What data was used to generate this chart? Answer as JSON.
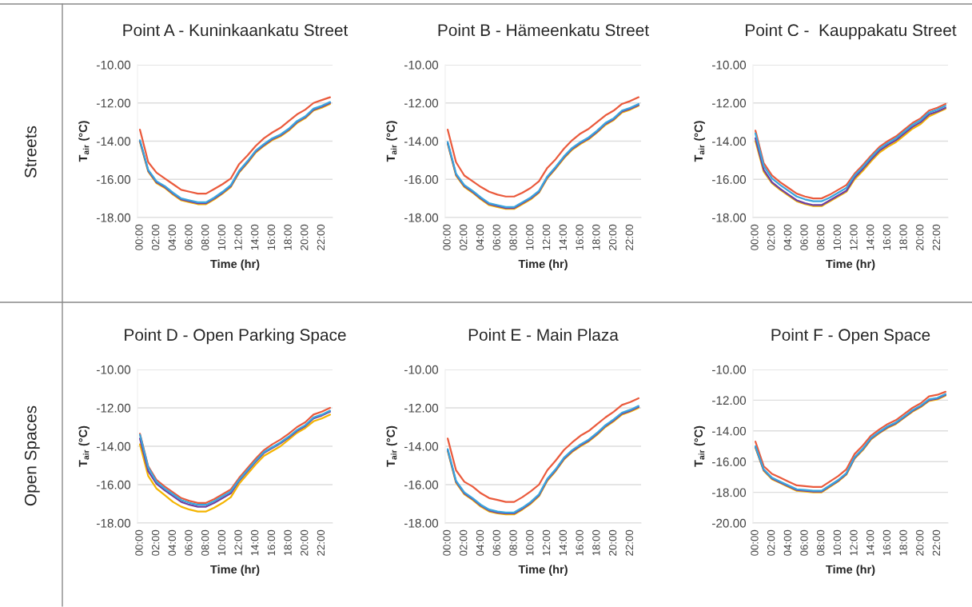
{
  "chart_data": [
    {
      "type": "line",
      "title": "Point A - Kuninkaankatu Street",
      "xlabel": "Time (hr)",
      "ylabel": "T$_{air}$ (°C)",
      "annotations": [
        "Streets"
      ],
      "categories": [
        "00:00",
        null,
        "02:00",
        null,
        "04:00",
        null,
        "06:00",
        null,
        "08:00",
        null,
        "10:00",
        null,
        "12:00",
        null,
        "14:00",
        null,
        "16:00",
        null,
        "18:00",
        null,
        "20:00",
        null,
        "22:00",
        null
      ],
      "ylim": [
        -18,
        -10
      ],
      "yticks": [
        {
          "value": -18,
          "label": "-18.00"
        },
        {
          "value": -16,
          "label": "-16.00"
        },
        {
          "value": -14,
          "label": "-14.00"
        },
        {
          "value": -12,
          "label": "-12.00"
        },
        {
          "value": -10,
          "label": "-10.00"
        }
      ],
      "grid": "y",
      "legend": false,
      "series": [
        {
          "color": "#ea5a3c",
          "values": [
            -13.4,
            -15.1,
            -15.65,
            -15.95,
            -16.25,
            -16.55,
            -16.65,
            -16.75,
            -16.75,
            -16.5,
            -16.25,
            -15.95,
            -15.2,
            -14.75,
            -14.25,
            -13.85,
            -13.55,
            -13.3,
            -12.95,
            -12.6,
            -12.35,
            -12.0,
            -11.85,
            -11.7
          ]
        },
        {
          "color": "#f4b400",
          "values": [
            -14.05,
            -15.6,
            -16.2,
            -16.45,
            -16.8,
            -17.1,
            -17.2,
            -17.3,
            -17.3,
            -17.05,
            -16.75,
            -16.4,
            -15.65,
            -15.15,
            -14.6,
            -14.25,
            -13.95,
            -13.75,
            -13.45,
            -13.05,
            -12.8,
            -12.4,
            -12.25,
            -12.05
          ]
        },
        {
          "color": "#6f3fa0",
          "values": [
            -14.0,
            -15.55,
            -16.15,
            -16.4,
            -16.75,
            -17.05,
            -17.15,
            -17.25,
            -17.25,
            -17.0,
            -16.7,
            -16.35,
            -15.6,
            -15.1,
            -14.55,
            -14.2,
            -13.9,
            -13.7,
            -13.4,
            -13.0,
            -12.75,
            -12.35,
            -12.2,
            -12.0
          ]
        },
        {
          "color": "#3aa6dd",
          "values": [
            -13.95,
            -15.5,
            -16.1,
            -16.35,
            -16.7,
            -17.0,
            -17.1,
            -17.2,
            -17.2,
            -16.95,
            -16.65,
            -16.3,
            -15.55,
            -15.05,
            -14.5,
            -14.15,
            -13.85,
            -13.65,
            -13.35,
            -12.95,
            -12.7,
            -12.3,
            -12.15,
            -11.95
          ]
        }
      ]
    },
    {
      "type": "line",
      "title": "Point B - Hämeenkatu Street",
      "xlabel": "Time (hr)",
      "ylabel": "T$_{air}$ (°C)",
      "categories": [
        "00:00",
        null,
        "02:00",
        null,
        "04:00",
        null,
        "06:00",
        null,
        "08:00",
        null,
        "10:00",
        null,
        "12:00",
        null,
        "14:00",
        null,
        "16:00",
        null,
        "18:00",
        null,
        "20:00",
        null,
        "22:00",
        null
      ],
      "ylim": [
        -18,
        -10
      ],
      "yticks": [
        {
          "value": -18,
          "label": "-18.00"
        },
        {
          "value": -16,
          "label": "-16.00"
        },
        {
          "value": -14,
          "label": "-14.00"
        },
        {
          "value": -12,
          "label": "-12.00"
        },
        {
          "value": -10,
          "label": "-10.00"
        }
      ],
      "grid": "y",
      "legend": false,
      "series": [
        {
          "color": "#ea5a3c",
          "values": [
            -13.4,
            -15.1,
            -15.8,
            -16.1,
            -16.4,
            -16.65,
            -16.8,
            -16.9,
            -16.9,
            -16.7,
            -16.45,
            -16.1,
            -15.4,
            -14.95,
            -14.4,
            -13.95,
            -13.6,
            -13.35,
            -13.0,
            -12.65,
            -12.4,
            -12.05,
            -11.9,
            -11.7
          ]
        },
        {
          "color": "#f4b400",
          "values": [
            -14.15,
            -15.8,
            -16.4,
            -16.7,
            -17.05,
            -17.35,
            -17.45,
            -17.55,
            -17.55,
            -17.3,
            -17.05,
            -16.7,
            -15.95,
            -15.45,
            -14.9,
            -14.45,
            -14.15,
            -13.9,
            -13.55,
            -13.15,
            -12.9,
            -12.5,
            -12.35,
            -12.15
          ]
        },
        {
          "color": "#6f3fa0",
          "values": [
            -14.1,
            -15.75,
            -16.35,
            -16.65,
            -17.0,
            -17.3,
            -17.4,
            -17.5,
            -17.5,
            -17.25,
            -17.0,
            -16.65,
            -15.9,
            -15.4,
            -14.85,
            -14.4,
            -14.1,
            -13.85,
            -13.5,
            -13.1,
            -12.85,
            -12.45,
            -12.3,
            -12.1
          ]
        },
        {
          "color": "#3aa6dd",
          "values": [
            -14.05,
            -15.7,
            -16.3,
            -16.6,
            -16.95,
            -17.25,
            -17.35,
            -17.45,
            -17.45,
            -17.2,
            -16.95,
            -16.6,
            -15.85,
            -15.35,
            -14.8,
            -14.35,
            -14.05,
            -13.8,
            -13.45,
            -13.05,
            -12.8,
            -12.4,
            -12.25,
            -12.05
          ]
        }
      ]
    },
    {
      "type": "line",
      "title": "Point C -  Kauppakatu Street",
      "xlabel": "Time (hr)",
      "ylabel": "T$_{air}$ (°C)",
      "categories": [
        "00:00",
        null,
        "02:00",
        null,
        "04:00",
        null,
        "06:00",
        null,
        "08:00",
        null,
        "10:00",
        null,
        "12:00",
        null,
        "14:00",
        null,
        "16:00",
        null,
        "18:00",
        null,
        "20:00",
        null,
        "22:00",
        null
      ],
      "ylim": [
        -18,
        -10
      ],
      "yticks": [
        {
          "value": -18,
          "label": "-18.00"
        },
        {
          "value": -16,
          "label": "-16.00"
        },
        {
          "value": -14,
          "label": "-14.00"
        },
        {
          "value": -12,
          "label": "-12.00"
        },
        {
          "value": -10,
          "label": "-10.00"
        }
      ],
      "grid": "y",
      "legend": false,
      "series": [
        {
          "color": "#ea5a3c",
          "values": [
            -13.45,
            -15.15,
            -15.8,
            -16.15,
            -16.45,
            -16.75,
            -16.9,
            -17.0,
            -17.0,
            -16.8,
            -16.55,
            -16.3,
            -15.7,
            -15.25,
            -14.75,
            -14.3,
            -14.0,
            -13.75,
            -13.4,
            -13.05,
            -12.8,
            -12.4,
            -12.25,
            -12.05
          ]
        },
        {
          "color": "#f4b400",
          "values": [
            -14.0,
            -15.6,
            -16.2,
            -16.55,
            -16.85,
            -17.15,
            -17.3,
            -17.4,
            -17.4,
            -17.15,
            -16.9,
            -16.65,
            -16.0,
            -15.55,
            -15.05,
            -14.6,
            -14.3,
            -14.05,
            -13.7,
            -13.35,
            -13.1,
            -12.7,
            -12.5,
            -12.3
          ]
        },
        {
          "color": "#6f3fa0",
          "values": [
            -13.85,
            -15.5,
            -16.15,
            -16.5,
            -16.8,
            -17.1,
            -17.25,
            -17.35,
            -17.35,
            -17.1,
            -16.85,
            -16.6,
            -15.9,
            -15.45,
            -14.95,
            -14.5,
            -14.2,
            -13.95,
            -13.6,
            -13.25,
            -13.0,
            -12.6,
            -12.45,
            -12.25
          ]
        },
        {
          "color": "#3aa6dd",
          "values": [
            -13.6,
            -15.3,
            -15.95,
            -16.3,
            -16.6,
            -16.9,
            -17.05,
            -17.15,
            -17.15,
            -16.95,
            -16.7,
            -16.45,
            -15.8,
            -15.35,
            -14.85,
            -14.4,
            -14.1,
            -13.85,
            -13.5,
            -13.15,
            -12.9,
            -12.5,
            -12.35,
            -12.15
          ]
        }
      ]
    },
    {
      "type": "line",
      "title": "Point D - Open Parking Space",
      "xlabel": "Time (hr)",
      "ylabel": "T$_{air}$ (°C)",
      "annotations": [
        "Open Spaces"
      ],
      "categories": [
        "00:00",
        null,
        "02:00",
        null,
        "04:00",
        null,
        "06:00",
        null,
        "08:00",
        null,
        "10:00",
        null,
        "12:00",
        null,
        "14:00",
        null,
        "16:00",
        null,
        "18:00",
        null,
        "20:00",
        null,
        "22:00",
        null
      ],
      "ylim": [
        -18,
        -10
      ],
      "yticks": [
        {
          "value": -18,
          "label": "-18.00"
        },
        {
          "value": -16,
          "label": "-16.00"
        },
        {
          "value": -14,
          "label": "-14.00"
        },
        {
          "value": -12,
          "label": "-12.00"
        },
        {
          "value": -10,
          "label": "-10.00"
        }
      ],
      "grid": "y",
      "legend": false,
      "series": [
        {
          "color": "#ea5a3c",
          "values": [
            -13.35,
            -15.05,
            -15.75,
            -16.1,
            -16.4,
            -16.7,
            -16.85,
            -16.95,
            -16.95,
            -16.75,
            -16.5,
            -16.25,
            -15.65,
            -15.15,
            -14.65,
            -14.2,
            -13.9,
            -13.65,
            -13.35,
            -13.0,
            -12.75,
            -12.35,
            -12.2,
            -12.0
          ]
        },
        {
          "color": "#f4b400",
          "values": [
            -13.9,
            -15.55,
            -16.2,
            -16.55,
            -16.9,
            -17.15,
            -17.3,
            -17.4,
            -17.4,
            -17.2,
            -16.95,
            -16.65,
            -15.95,
            -15.45,
            -14.95,
            -14.5,
            -14.25,
            -14.0,
            -13.65,
            -13.3,
            -13.05,
            -12.7,
            -12.55,
            -12.35
          ]
        },
        {
          "color": "#6f3fa0",
          "values": [
            -13.6,
            -15.3,
            -15.95,
            -16.3,
            -16.6,
            -16.9,
            -17.05,
            -17.15,
            -17.15,
            -16.95,
            -16.7,
            -16.45,
            -15.8,
            -15.3,
            -14.8,
            -14.35,
            -14.1,
            -13.85,
            -13.55,
            -13.2,
            -12.95,
            -12.55,
            -12.4,
            -12.2
          ]
        },
        {
          "color": "#3aa6dd",
          "values": [
            -13.4,
            -15.1,
            -15.85,
            -16.2,
            -16.5,
            -16.8,
            -16.95,
            -17.05,
            -17.05,
            -16.85,
            -16.6,
            -16.35,
            -15.75,
            -15.25,
            -14.75,
            -14.3,
            -14.05,
            -13.8,
            -13.5,
            -13.15,
            -12.9,
            -12.5,
            -12.35,
            -12.15
          ]
        }
      ]
    },
    {
      "type": "line",
      "title": "Point E - Main Plaza",
      "xlabel": "Time (hr)",
      "ylabel": "T$_{air}$ (°C)",
      "categories": [
        "00:00",
        null,
        "02:00",
        null,
        "04:00",
        null,
        "06:00",
        null,
        "08:00",
        null,
        "10:00",
        null,
        "12:00",
        null,
        "14:00",
        null,
        "16:00",
        null,
        "18:00",
        null,
        "20:00",
        null,
        "22:00",
        null
      ],
      "ylim": [
        -18,
        -10
      ],
      "yticks": [
        {
          "value": -18,
          "label": "-18.00"
        },
        {
          "value": -16,
          "label": "-16.00"
        },
        {
          "value": -14,
          "label": "-14.00"
        },
        {
          "value": -12,
          "label": "-12.00"
        },
        {
          "value": -10,
          "label": "-10.00"
        }
      ],
      "grid": "y",
      "legend": false,
      "series": [
        {
          "color": "#ea5a3c",
          "values": [
            -13.6,
            -15.25,
            -15.85,
            -16.1,
            -16.45,
            -16.7,
            -16.8,
            -16.9,
            -16.9,
            -16.65,
            -16.35,
            -16.0,
            -15.25,
            -14.75,
            -14.2,
            -13.8,
            -13.45,
            -13.2,
            -12.85,
            -12.5,
            -12.2,
            -11.85,
            -11.7,
            -11.5
          ]
        },
        {
          "color": "#f4b400",
          "values": [
            -14.25,
            -15.9,
            -16.5,
            -16.8,
            -17.15,
            -17.4,
            -17.5,
            -17.55,
            -17.55,
            -17.3,
            -17.0,
            -16.6,
            -15.8,
            -15.3,
            -14.7,
            -14.3,
            -14.0,
            -13.75,
            -13.4,
            -13.0,
            -12.7,
            -12.35,
            -12.2,
            -12.0
          ]
        },
        {
          "color": "#6f3fa0",
          "values": [
            -14.2,
            -15.85,
            -16.45,
            -16.75,
            -17.1,
            -17.35,
            -17.45,
            -17.5,
            -17.5,
            -17.25,
            -16.95,
            -16.55,
            -15.75,
            -15.25,
            -14.65,
            -14.25,
            -13.95,
            -13.7,
            -13.35,
            -12.95,
            -12.65,
            -12.3,
            -12.15,
            -11.95
          ]
        },
        {
          "color": "#3aa6dd",
          "values": [
            -14.15,
            -15.8,
            -16.4,
            -16.7,
            -17.05,
            -17.3,
            -17.4,
            -17.45,
            -17.45,
            -17.2,
            -16.9,
            -16.5,
            -15.7,
            -15.2,
            -14.6,
            -14.2,
            -13.9,
            -13.65,
            -13.3,
            -12.9,
            -12.6,
            -12.25,
            -12.1,
            -11.9
          ]
        }
      ]
    },
    {
      "type": "line",
      "title": "Point F - Open Space",
      "xlabel": "Time (hr)",
      "ylabel": "T$_{air}$ (°C)",
      "categories": [
        "00:00",
        null,
        "02:00",
        null,
        "04:00",
        null,
        "06:00",
        null,
        "08:00",
        null,
        "10:00",
        null,
        "12:00",
        null,
        "14:00",
        null,
        "16:00",
        null,
        "18:00",
        null,
        "20:00",
        null,
        "22:00",
        null
      ],
      "ylim": [
        -20,
        -10
      ],
      "yticks": [
        {
          "value": -20,
          "label": "-20.00"
        },
        {
          "value": -18,
          "label": "-18.00"
        },
        {
          "value": -16,
          "label": "-16.00"
        },
        {
          "value": -14,
          "label": "-14.00"
        },
        {
          "value": -12,
          "label": "-12.00"
        },
        {
          "value": -10,
          "label": "-10.00"
        }
      ],
      "grid": "y",
      "legend": false,
      "series": [
        {
          "color": "#ea5a3c",
          "values": [
            -14.7,
            -16.3,
            -16.8,
            -17.05,
            -17.3,
            -17.55,
            -17.6,
            -17.65,
            -17.65,
            -17.3,
            -16.95,
            -16.5,
            -15.5,
            -14.95,
            -14.3,
            -13.9,
            -13.55,
            -13.3,
            -12.9,
            -12.5,
            -12.2,
            -11.75,
            -11.65,
            -11.45
          ]
        },
        {
          "color": "#f4b400",
          "values": [
            -15.1,
            -16.6,
            -17.15,
            -17.4,
            -17.65,
            -17.9,
            -17.95,
            -18.0,
            -18.0,
            -17.65,
            -17.3,
            -16.85,
            -15.8,
            -15.25,
            -14.55,
            -14.15,
            -13.8,
            -13.55,
            -13.15,
            -12.75,
            -12.45,
            -12.05,
            -11.95,
            -11.7
          ]
        },
        {
          "color": "#6f3fa0",
          "values": [
            -15.05,
            -16.55,
            -17.1,
            -17.35,
            -17.6,
            -17.85,
            -17.9,
            -17.95,
            -17.95,
            -17.6,
            -17.25,
            -16.8,
            -15.75,
            -15.2,
            -14.5,
            -14.1,
            -13.75,
            -13.5,
            -13.1,
            -12.7,
            -12.4,
            -12.0,
            -11.9,
            -11.65
          ]
        },
        {
          "color": "#3aa6dd",
          "values": [
            -15.0,
            -16.5,
            -17.05,
            -17.3,
            -17.55,
            -17.8,
            -17.85,
            -17.9,
            -17.9,
            -17.55,
            -17.2,
            -16.75,
            -15.7,
            -15.15,
            -14.45,
            -14.05,
            -13.7,
            -13.45,
            -13.05,
            -12.65,
            -12.35,
            -11.95,
            -11.85,
            -11.6
          ]
        }
      ]
    }
  ]
}
